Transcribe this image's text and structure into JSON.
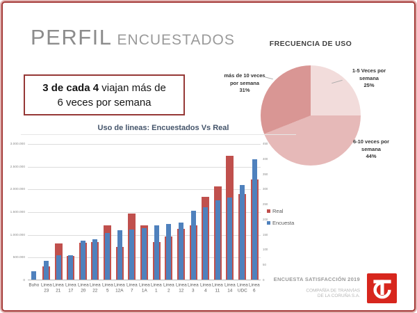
{
  "header": {
    "title_main": "PERFIL",
    "title_sub": "ENCUESTADOS"
  },
  "highlight": {
    "bold": "3 de cada 4",
    "line1_rest": " viajan más de",
    "line2": "6 veces por semana"
  },
  "chart_data": [
    {
      "type": "pie",
      "title": "FRECUENCIA DE USO",
      "start_angle_deg": 0,
      "direction": "clockwise",
      "slices": [
        {
          "label": "1-5 Veces por semana",
          "label_lines": [
            "1-5 Veces por",
            "semana",
            "25%"
          ],
          "value": 25,
          "color": "#F2DCDB"
        },
        {
          "label": "6-10 veces por semana",
          "label_lines": [
            "6-10 veces por",
            "semana",
            "44%"
          ],
          "value": 44,
          "color": "#E6B9B8"
        },
        {
          "label": "más de 10 veces por semana",
          "label_lines": [
            "más de 10 veces",
            "por semana",
            "31%"
          ],
          "value": 31,
          "color": "#D99694"
        }
      ]
    },
    {
      "type": "bar",
      "title": "Uso de lineas: Encuestados Vs Real",
      "categories": [
        "Buho",
        "Linea 23",
        "Linea 21",
        "Linea 17",
        "Linea 20",
        "Linea 22",
        "Linea 5",
        "Linea 12A",
        "Linea 7",
        "Linea 1A",
        "Linea 1",
        "Linea 2",
        "Linea 12",
        "Linea 3",
        "Linea 4",
        "Linea 11",
        "Linea 14",
        "Linea UDC",
        "Linea 6"
      ],
      "series": [
        {
          "name": "Real",
          "axis": "left",
          "color": "#C0504D",
          "values": [
            0,
            290000,
            800000,
            520000,
            810000,
            825000,
            1190000,
            720000,
            1460000,
            1190000,
            830000,
            955000,
            1120000,
            1190000,
            1820000,
            2050000,
            2720000,
            1890000,
            2210000
          ]
        },
        {
          "name": "Encuesta",
          "axis": "right",
          "color": "#4F81BD",
          "values": [
            28,
            61,
            80,
            80,
            129,
            133,
            153,
            164,
            166,
            169,
            179,
            183,
            189,
            228,
            238,
            261,
            272,
            312,
            398
          ]
        }
      ],
      "left_axis": {
        "min": 0,
        "max": 3000000,
        "tick_labels": [
          "0",
          "500.000",
          "1.000.000",
          "1.500.000",
          "2.000.000",
          "2.500.000",
          "3.000.000"
        ]
      },
      "right_axis": {
        "min": 0,
        "max": 450,
        "tick_labels": [
          "0",
          "50",
          "100",
          "150",
          "200",
          "250",
          "300",
          "350",
          "400",
          "450"
        ]
      },
      "grid": "horizontal",
      "legend_position": "right",
      "bar_layout": "overlapped"
    }
  ],
  "footer": {
    "survey": "ENCUESTA SATISFACCIÓN 2019",
    "company_line1": "COMPAÑÍA DE TRANVÍAS",
    "company_line2": "DE LA CORUÑA S.A.",
    "logo": "tranvias-logo"
  },
  "colors": {
    "frame": "#A43A38",
    "frame_outer": "#E2B4B2",
    "title_gray": "#8C8C8C",
    "box_border": "#953735",
    "accent_red": "#C0504D",
    "accent_blue": "#4F81BD",
    "pie_light": "#F2DCDB",
    "pie_medium": "#E6B9B8",
    "pie_dark": "#D99694",
    "logo_red": "#D7261D"
  }
}
